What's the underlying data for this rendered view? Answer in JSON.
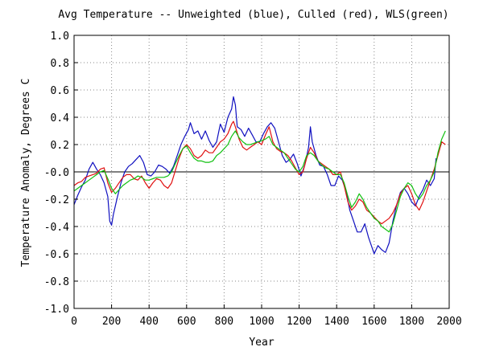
{
  "chart_data": {
    "type": "line",
    "title": "Avg Temperature -- Unweighted (blue), Culled (red), WLS(green)",
    "xlabel": "Year",
    "ylabel": "Temperature Anomaly, Degrees C",
    "xlim": [
      0,
      2000
    ],
    "ylim": [
      -1.0,
      1.0
    ],
    "x_ticks": [
      0,
      200,
      400,
      600,
      800,
      1000,
      1200,
      1400,
      1600,
      1800,
      2000
    ],
    "y_ticks": [
      1.0,
      0.8,
      0.6,
      0.4,
      0.2,
      0.0,
      -0.2,
      -0.4,
      -0.6,
      -0.8,
      -1.0
    ],
    "x_tick_labels": [
      "0",
      "200",
      "400",
      "600",
      "800",
      "1000",
      "1200",
      "1400",
      "1600",
      "1800",
      "2000"
    ],
    "y_tick_labels": [
      "1.0",
      "0.8",
      "0.6",
      "0.4",
      "0.2",
      "-0.0",
      "-0.2",
      "-0.4",
      "-0.6",
      "-0.8",
      "-1.0"
    ],
    "grid": true,
    "zero_line": true,
    "series": [
      {
        "color": "#1010c0",
        "points": [
          [
            0,
            -0.24
          ],
          [
            20,
            -0.17
          ],
          [
            40,
            -0.11
          ],
          [
            60,
            -0.06
          ],
          [
            80,
            0.02
          ],
          [
            100,
            0.07
          ],
          [
            120,
            0.02
          ],
          [
            140,
            -0.02
          ],
          [
            160,
            -0.08
          ],
          [
            180,
            -0.18
          ],
          [
            190,
            -0.36
          ],
          [
            200,
            -0.39
          ],
          [
            210,
            -0.31
          ],
          [
            230,
            -0.19
          ],
          [
            250,
            -0.08
          ],
          [
            270,
            0.0
          ],
          [
            290,
            0.04
          ],
          [
            310,
            0.06
          ],
          [
            330,
            0.09
          ],
          [
            350,
            0.12
          ],
          [
            370,
            0.07
          ],
          [
            390,
            -0.02
          ],
          [
            410,
            -0.03
          ],
          [
            430,
            0.0
          ],
          [
            450,
            0.05
          ],
          [
            470,
            0.04
          ],
          [
            490,
            0.02
          ],
          [
            510,
            -0.01
          ],
          [
            530,
            0.04
          ],
          [
            550,
            0.12
          ],
          [
            570,
            0.2
          ],
          [
            590,
            0.26
          ],
          [
            610,
            0.31
          ],
          [
            620,
            0.36
          ],
          [
            640,
            0.28
          ],
          [
            660,
            0.3
          ],
          [
            680,
            0.24
          ],
          [
            700,
            0.3
          ],
          [
            720,
            0.23
          ],
          [
            740,
            0.18
          ],
          [
            760,
            0.22
          ],
          [
            780,
            0.35
          ],
          [
            800,
            0.29
          ],
          [
            820,
            0.4
          ],
          [
            840,
            0.46
          ],
          [
            850,
            0.55
          ],
          [
            860,
            0.49
          ],
          [
            870,
            0.33
          ],
          [
            890,
            0.31
          ],
          [
            910,
            0.26
          ],
          [
            930,
            0.32
          ],
          [
            950,
            0.27
          ],
          [
            970,
            0.22
          ],
          [
            990,
            0.22
          ],
          [
            1010,
            0.28
          ],
          [
            1030,
            0.33
          ],
          [
            1050,
            0.36
          ],
          [
            1070,
            0.32
          ],
          [
            1090,
            0.22
          ],
          [
            1110,
            0.12
          ],
          [
            1130,
            0.07
          ],
          [
            1150,
            0.09
          ],
          [
            1170,
            0.13
          ],
          [
            1190,
            0.06
          ],
          [
            1210,
            -0.03
          ],
          [
            1230,
            0.05
          ],
          [
            1250,
            0.18
          ],
          [
            1260,
            0.33
          ],
          [
            1270,
            0.22
          ],
          [
            1290,
            0.12
          ],
          [
            1310,
            0.05
          ],
          [
            1330,
            0.04
          ],
          [
            1350,
            -0.02
          ],
          [
            1370,
            -0.1
          ],
          [
            1390,
            -0.1
          ],
          [
            1410,
            -0.03
          ],
          [
            1430,
            -0.06
          ],
          [
            1450,
            -0.14
          ],
          [
            1470,
            -0.28
          ],
          [
            1490,
            -0.36
          ],
          [
            1510,
            -0.44
          ],
          [
            1530,
            -0.44
          ],
          [
            1550,
            -0.38
          ],
          [
            1570,
            -0.48
          ],
          [
            1590,
            -0.56
          ],
          [
            1600,
            -0.6
          ],
          [
            1620,
            -0.54
          ],
          [
            1640,
            -0.57
          ],
          [
            1660,
            -0.59
          ],
          [
            1680,
            -0.52
          ],
          [
            1700,
            -0.36
          ],
          [
            1720,
            -0.24
          ],
          [
            1740,
            -0.15
          ],
          [
            1760,
            -0.12
          ],
          [
            1780,
            -0.16
          ],
          [
            1800,
            -0.22
          ],
          [
            1820,
            -0.25
          ],
          [
            1840,
            -0.18
          ],
          [
            1860,
            -0.13
          ],
          [
            1880,
            -0.06
          ],
          [
            1900,
            -0.1
          ],
          [
            1920,
            -0.05
          ],
          [
            1930,
            0.1
          ]
        ]
      },
      {
        "color": "#e01010",
        "points": [
          [
            0,
            -0.1
          ],
          [
            20,
            -0.08
          ],
          [
            40,
            -0.07
          ],
          [
            60,
            -0.04
          ],
          [
            80,
            -0.03
          ],
          [
            100,
            -0.02
          ],
          [
            120,
            -0.01
          ],
          [
            140,
            0.02
          ],
          [
            160,
            0.03
          ],
          [
            180,
            -0.08
          ],
          [
            200,
            -0.15
          ],
          [
            220,
            -0.12
          ],
          [
            240,
            -0.08
          ],
          [
            260,
            -0.04
          ],
          [
            280,
            -0.02
          ],
          [
            300,
            -0.02
          ],
          [
            320,
            -0.05
          ],
          [
            340,
            -0.06
          ],
          [
            360,
            -0.03
          ],
          [
            380,
            -0.08
          ],
          [
            400,
            -0.12
          ],
          [
            420,
            -0.08
          ],
          [
            440,
            -0.05
          ],
          [
            460,
            -0.06
          ],
          [
            480,
            -0.1
          ],
          [
            500,
            -0.12
          ],
          [
            520,
            -0.08
          ],
          [
            540,
            0.01
          ],
          [
            560,
            0.1
          ],
          [
            580,
            0.17
          ],
          [
            600,
            0.2
          ],
          [
            620,
            0.17
          ],
          [
            640,
            0.12
          ],
          [
            660,
            0.1
          ],
          [
            680,
            0.12
          ],
          [
            700,
            0.16
          ],
          [
            720,
            0.14
          ],
          [
            740,
            0.14
          ],
          [
            760,
            0.18
          ],
          [
            780,
            0.22
          ],
          [
            800,
            0.24
          ],
          [
            820,
            0.28
          ],
          [
            840,
            0.35
          ],
          [
            850,
            0.37
          ],
          [
            860,
            0.33
          ],
          [
            880,
            0.24
          ],
          [
            900,
            0.18
          ],
          [
            920,
            0.16
          ],
          [
            940,
            0.18
          ],
          [
            960,
            0.2
          ],
          [
            980,
            0.22
          ],
          [
            1000,
            0.2
          ],
          [
            1020,
            0.27
          ],
          [
            1040,
            0.33
          ],
          [
            1060,
            0.22
          ],
          [
            1080,
            0.17
          ],
          [
            1100,
            0.15
          ],
          [
            1120,
            0.14
          ],
          [
            1140,
            0.12
          ],
          [
            1160,
            0.08
          ],
          [
            1180,
            0.03
          ],
          [
            1200,
            -0.02
          ],
          [
            1220,
            0.0
          ],
          [
            1240,
            0.1
          ],
          [
            1260,
            0.18
          ],
          [
            1280,
            0.14
          ],
          [
            1300,
            0.08
          ],
          [
            1320,
            0.06
          ],
          [
            1340,
            0.04
          ],
          [
            1360,
            0.02
          ],
          [
            1380,
            -0.02
          ],
          [
            1400,
            -0.02
          ],
          [
            1420,
            0.0
          ],
          [
            1440,
            -0.1
          ],
          [
            1460,
            -0.22
          ],
          [
            1480,
            -0.28
          ],
          [
            1500,
            -0.25
          ],
          [
            1520,
            -0.2
          ],
          [
            1540,
            -0.22
          ],
          [
            1560,
            -0.28
          ],
          [
            1580,
            -0.3
          ],
          [
            1600,
            -0.33
          ],
          [
            1620,
            -0.36
          ],
          [
            1640,
            -0.38
          ],
          [
            1660,
            -0.36
          ],
          [
            1680,
            -0.34
          ],
          [
            1700,
            -0.3
          ],
          [
            1720,
            -0.24
          ],
          [
            1740,
            -0.16
          ],
          [
            1760,
            -0.12
          ],
          [
            1780,
            -0.1
          ],
          [
            1800,
            -0.16
          ],
          [
            1820,
            -0.24
          ],
          [
            1840,
            -0.28
          ],
          [
            1860,
            -0.22
          ],
          [
            1880,
            -0.14
          ],
          [
            1900,
            -0.06
          ],
          [
            1920,
            0.02
          ],
          [
            1940,
            0.12
          ],
          [
            1960,
            0.22
          ],
          [
            1980,
            0.2
          ]
        ]
      },
      {
        "color": "#10c010",
        "points": [
          [
            0,
            -0.14
          ],
          [
            20,
            -0.12
          ],
          [
            40,
            -0.1
          ],
          [
            60,
            -0.08
          ],
          [
            80,
            -0.06
          ],
          [
            100,
            -0.04
          ],
          [
            120,
            -0.02
          ],
          [
            140,
            0.0
          ],
          [
            160,
            0.01
          ],
          [
            180,
            -0.05
          ],
          [
            200,
            -0.12
          ],
          [
            220,
            -0.16
          ],
          [
            240,
            -0.13
          ],
          [
            260,
            -0.1
          ],
          [
            280,
            -0.08
          ],
          [
            300,
            -0.06
          ],
          [
            320,
            -0.05
          ],
          [
            340,
            -0.03
          ],
          [
            360,
            -0.04
          ],
          [
            380,
            -0.06
          ],
          [
            400,
            -0.06
          ],
          [
            420,
            -0.05
          ],
          [
            440,
            -0.04
          ],
          [
            460,
            -0.04
          ],
          [
            480,
            -0.04
          ],
          [
            500,
            -0.03
          ],
          [
            520,
            0.0
          ],
          [
            540,
            0.06
          ],
          [
            560,
            0.12
          ],
          [
            580,
            0.17
          ],
          [
            600,
            0.19
          ],
          [
            620,
            0.14
          ],
          [
            640,
            0.1
          ],
          [
            660,
            0.08
          ],
          [
            680,
            0.08
          ],
          [
            700,
            0.07
          ],
          [
            720,
            0.07
          ],
          [
            740,
            0.08
          ],
          [
            760,
            0.12
          ],
          [
            780,
            0.14
          ],
          [
            800,
            0.17
          ],
          [
            820,
            0.2
          ],
          [
            840,
            0.26
          ],
          [
            860,
            0.3
          ],
          [
            880,
            0.25
          ],
          [
            900,
            0.22
          ],
          [
            920,
            0.2
          ],
          [
            940,
            0.2
          ],
          [
            960,
            0.21
          ],
          [
            980,
            0.22
          ],
          [
            1000,
            0.23
          ],
          [
            1020,
            0.24
          ],
          [
            1040,
            0.26
          ],
          [
            1060,
            0.2
          ],
          [
            1080,
            0.18
          ],
          [
            1100,
            0.16
          ],
          [
            1120,
            0.14
          ],
          [
            1140,
            0.1
          ],
          [
            1160,
            0.06
          ],
          [
            1180,
            0.02
          ],
          [
            1200,
            0.0
          ],
          [
            1220,
            0.04
          ],
          [
            1240,
            0.12
          ],
          [
            1260,
            0.14
          ],
          [
            1280,
            0.12
          ],
          [
            1300,
            0.08
          ],
          [
            1320,
            0.05
          ],
          [
            1340,
            0.03
          ],
          [
            1360,
            0.02
          ],
          [
            1380,
            0.0
          ],
          [
            1400,
            -0.02
          ],
          [
            1420,
            -0.02
          ],
          [
            1440,
            -0.08
          ],
          [
            1460,
            -0.18
          ],
          [
            1480,
            -0.26
          ],
          [
            1500,
            -0.22
          ],
          [
            1520,
            -0.16
          ],
          [
            1540,
            -0.2
          ],
          [
            1560,
            -0.26
          ],
          [
            1580,
            -0.3
          ],
          [
            1600,
            -0.34
          ],
          [
            1620,
            -0.36
          ],
          [
            1640,
            -0.4
          ],
          [
            1660,
            -0.42
          ],
          [
            1680,
            -0.44
          ],
          [
            1700,
            -0.38
          ],
          [
            1720,
            -0.28
          ],
          [
            1740,
            -0.18
          ],
          [
            1760,
            -0.12
          ],
          [
            1780,
            -0.08
          ],
          [
            1800,
            -0.1
          ],
          [
            1820,
            -0.16
          ],
          [
            1840,
            -0.2
          ],
          [
            1860,
            -0.16
          ],
          [
            1880,
            -0.1
          ],
          [
            1900,
            -0.06
          ],
          [
            1920,
            0.0
          ],
          [
            1940,
            0.14
          ],
          [
            1960,
            0.24
          ],
          [
            1980,
            0.3
          ]
        ]
      }
    ]
  }
}
